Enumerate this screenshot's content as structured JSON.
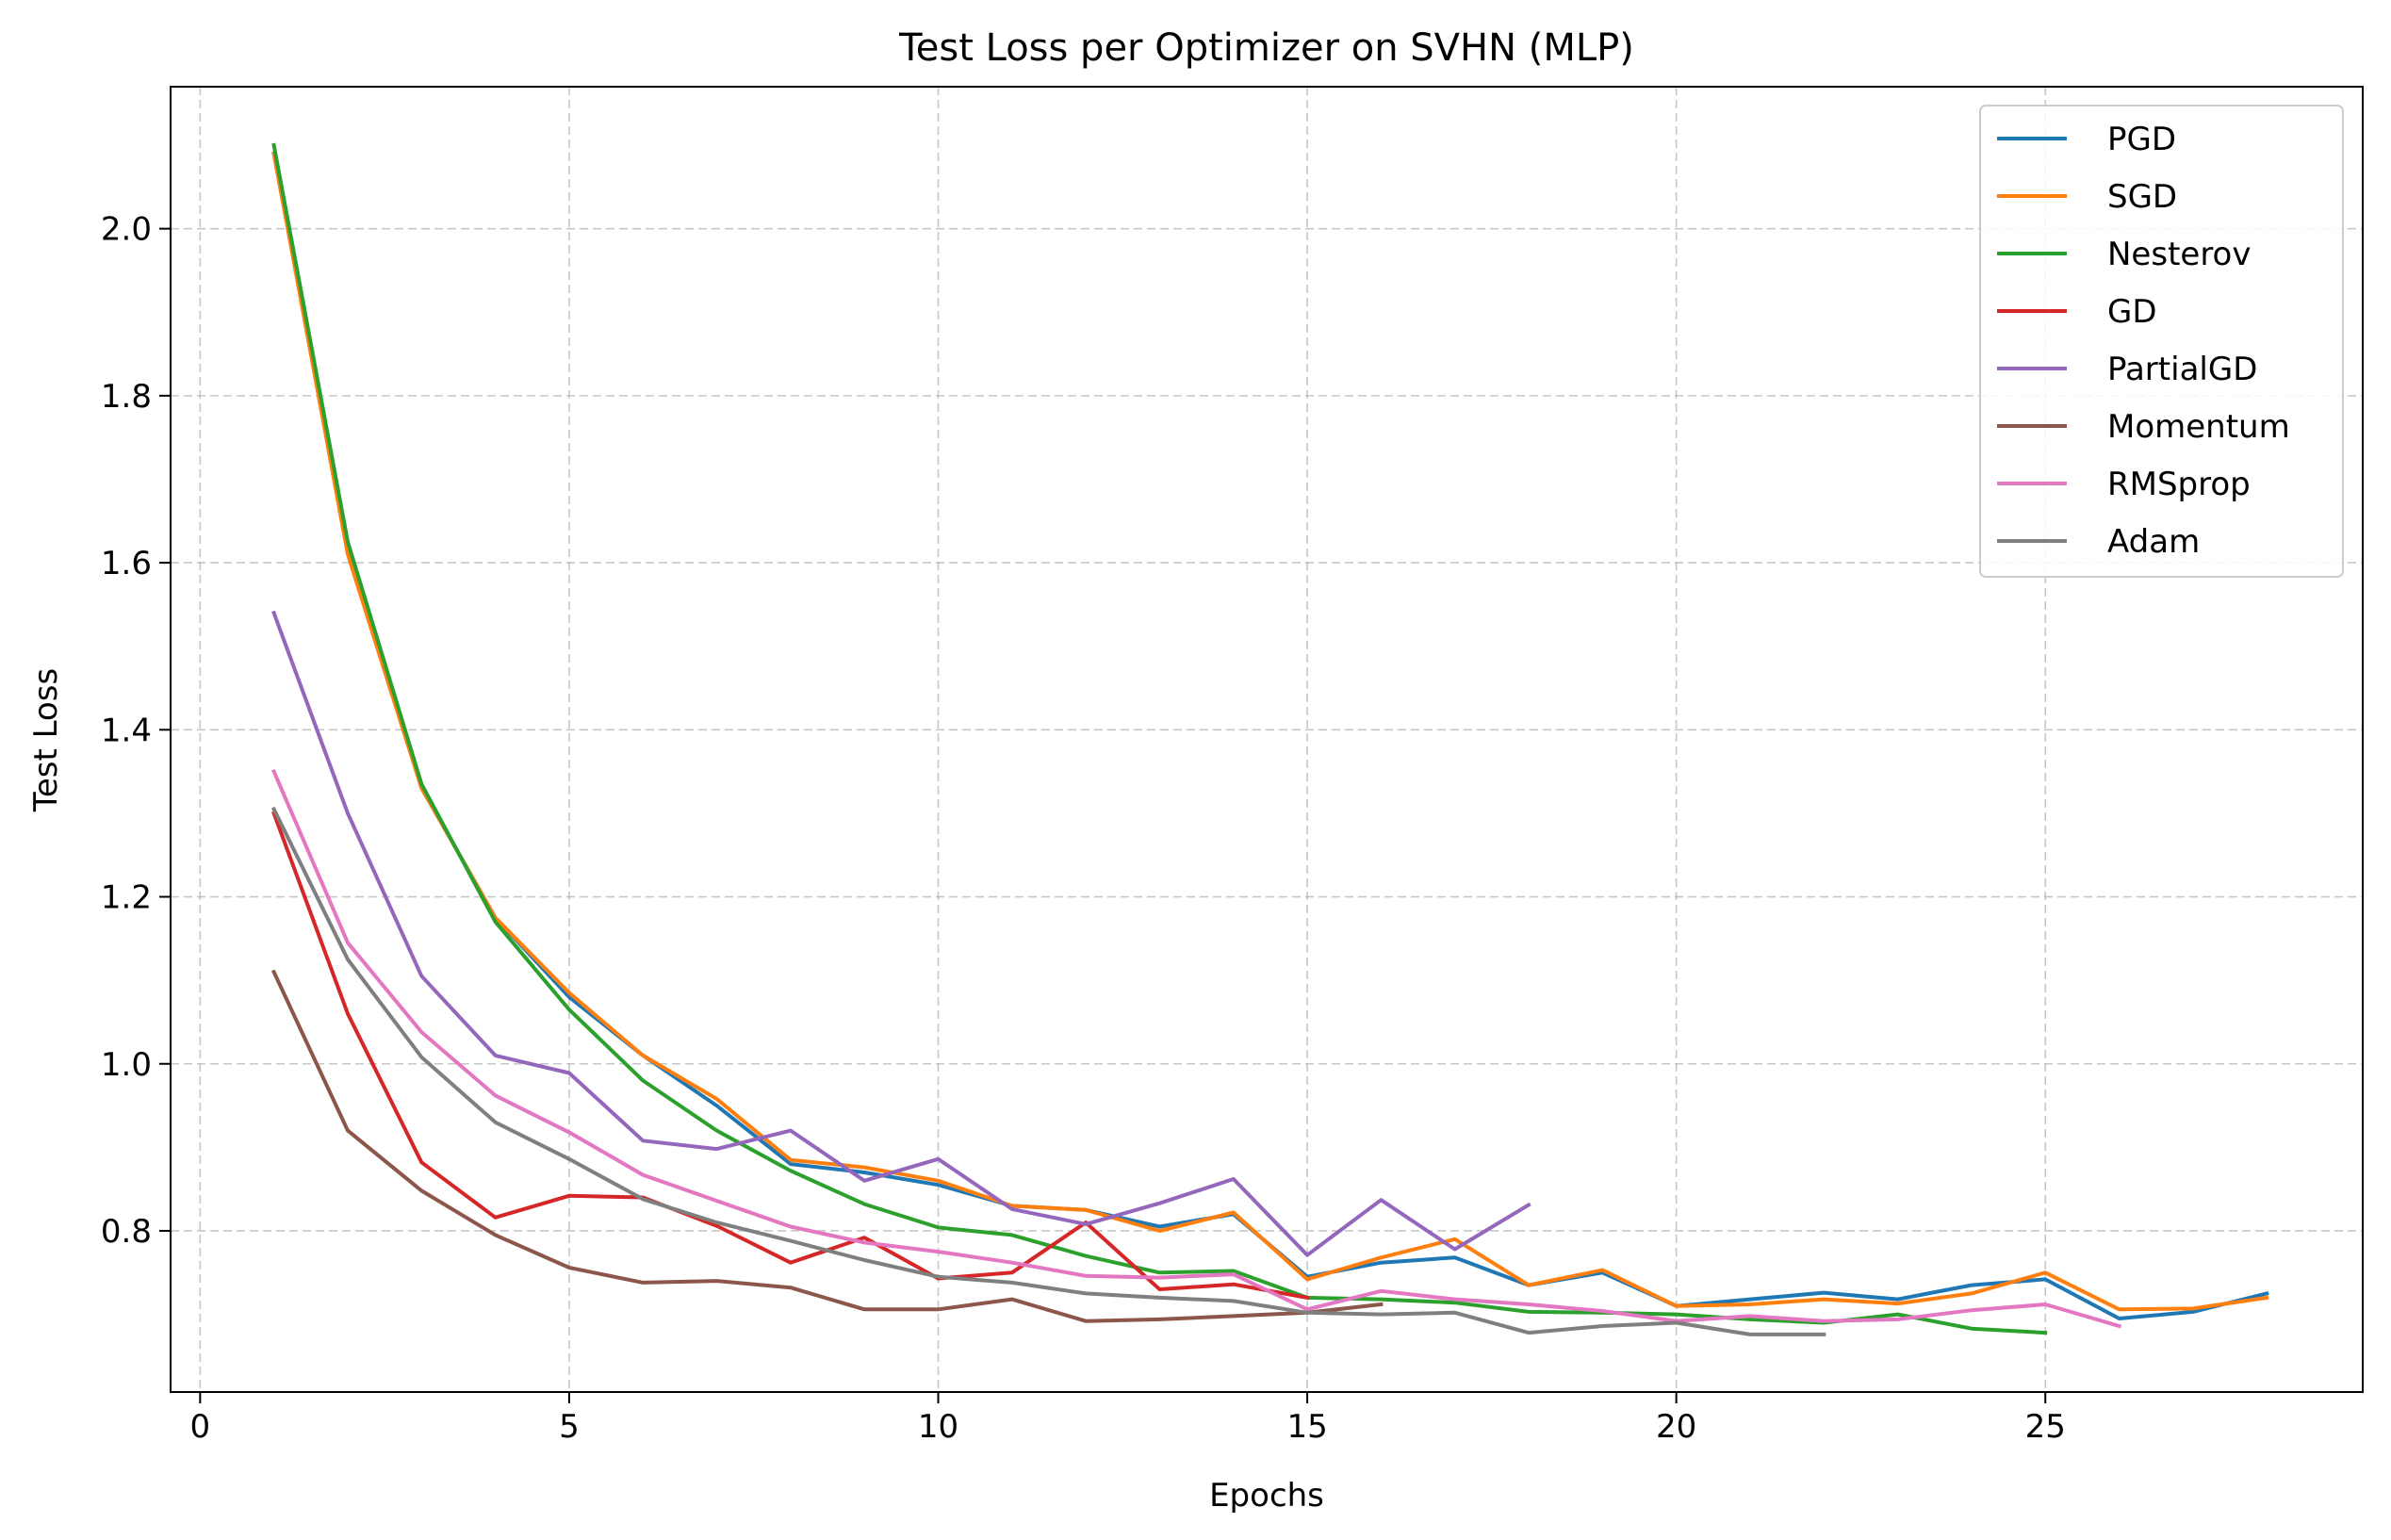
{
  "chart_data": {
    "type": "line",
    "title": "Test Loss per Optimizer on SVHN (MLP)",
    "xlabel": "Epochs",
    "ylabel": "Test Loss",
    "xlim": [
      -0.4,
      29.3
    ],
    "ylim": [
      0.607,
      2.17
    ],
    "xticks": [
      0,
      5,
      10,
      15,
      20,
      25
    ],
    "yticks": [
      0.8,
      1.0,
      1.2,
      1.4,
      1.6,
      1.8,
      2.0
    ],
    "xtick_labels": [
      "0",
      "5",
      "10",
      "15",
      "20",
      "25"
    ],
    "ytick_labels": [
      "0.8",
      "1.0",
      "1.2",
      "1.4",
      "1.6",
      "1.8",
      "2.0"
    ],
    "grid": true,
    "legend_position": "top-right",
    "series": [
      {
        "name": "PGD",
        "color": "#1f77b4",
        "x": [
          1,
          2,
          3,
          4,
          5,
          6,
          7,
          8,
          9,
          10,
          11,
          12,
          13,
          14,
          15,
          16,
          17,
          18,
          19,
          20,
          21,
          22,
          23,
          24,
          25,
          26,
          27,
          28
        ],
        "values": [
          2.09,
          1.62,
          1.33,
          1.175,
          1.08,
          1.01,
          0.95,
          0.88,
          0.87,
          0.855,
          0.83,
          0.825,
          0.805,
          0.82,
          0.745,
          0.762,
          0.768,
          0.735,
          0.75,
          0.71,
          0.718,
          0.726,
          0.718,
          0.735,
          0.742,
          0.695,
          0.703,
          0.725
        ]
      },
      {
        "name": "SGD",
        "color": "#ff7f0e",
        "x": [
          1,
          2,
          3,
          4,
          5,
          6,
          7,
          8,
          9,
          10,
          11,
          12,
          13,
          14,
          15,
          16,
          17,
          18,
          19,
          20,
          21,
          22,
          23,
          24,
          25,
          26,
          27,
          28
        ],
        "values": [
          2.09,
          1.61,
          1.33,
          1.175,
          1.085,
          1.01,
          0.958,
          0.885,
          0.876,
          0.86,
          0.83,
          0.825,
          0.8,
          0.822,
          0.742,
          0.768,
          0.79,
          0.735,
          0.753,
          0.71,
          0.712,
          0.718,
          0.713,
          0.725,
          0.75,
          0.706,
          0.707,
          0.72
        ]
      },
      {
        "name": "Nesterov",
        "color": "#2ca02c",
        "x": [
          1,
          2,
          3,
          4,
          5,
          6,
          7,
          8,
          9,
          10,
          11,
          12,
          13,
          14,
          15,
          16,
          17,
          18,
          19,
          20,
          21,
          22,
          23,
          24,
          25
        ],
        "values": [
          2.1,
          1.625,
          1.335,
          1.17,
          1.065,
          0.98,
          0.92,
          0.872,
          0.832,
          0.804,
          0.795,
          0.77,
          0.75,
          0.752,
          0.72,
          0.718,
          0.714,
          0.703,
          0.702,
          0.7,
          0.694,
          0.69,
          0.7,
          0.683,
          0.678
        ]
      },
      {
        "name": "GD",
        "color": "#d62728",
        "x": [
          1,
          2,
          3,
          4,
          5,
          6,
          7,
          8,
          9,
          10,
          11,
          12,
          13,
          14,
          15
        ],
        "values": [
          1.3,
          1.06,
          0.882,
          0.816,
          0.842,
          0.84,
          0.806,
          0.762,
          0.792,
          0.743,
          0.75,
          0.81,
          0.73,
          0.736,
          0.72
        ]
      },
      {
        "name": "PartialGD",
        "color": "#9467bd",
        "x": [
          1,
          2,
          3,
          4,
          5,
          6,
          7,
          8,
          9,
          10,
          11,
          12,
          13,
          14,
          15,
          16,
          17,
          18
        ],
        "values": [
          1.54,
          1.3,
          1.105,
          1.01,
          0.989,
          0.908,
          0.898,
          0.92,
          0.86,
          0.886,
          0.826,
          0.808,
          0.833,
          0.862,
          0.771,
          0.837,
          0.778,
          0.831
        ]
      },
      {
        "name": "Momentum",
        "color": "#8c564b",
        "x": [
          1,
          2,
          3,
          4,
          5,
          6,
          7,
          8,
          9,
          10,
          11,
          12,
          13,
          14,
          15,
          16
        ],
        "values": [
          1.11,
          0.92,
          0.848,
          0.795,
          0.756,
          0.738,
          0.74,
          0.732,
          0.706,
          0.706,
          0.718,
          0.692,
          0.694,
          0.698,
          0.702,
          0.712
        ]
      },
      {
        "name": "RMSprop",
        "color": "#e377c2",
        "x": [
          1,
          2,
          3,
          4,
          5,
          6,
          7,
          8,
          9,
          10,
          11,
          12,
          13,
          14,
          15,
          16,
          17,
          18,
          19,
          20,
          21,
          22,
          23,
          24,
          25,
          26
        ],
        "values": [
          1.35,
          1.145,
          1.038,
          0.962,
          0.918,
          0.867,
          0.836,
          0.805,
          0.786,
          0.775,
          0.762,
          0.746,
          0.744,
          0.748,
          0.706,
          0.728,
          0.718,
          0.712,
          0.704,
          0.692,
          0.698,
          0.692,
          0.694,
          0.705,
          0.712,
          0.686
        ]
      },
      {
        "name": "Adam",
        "color": "#7f7f7f",
        "x": [
          1,
          2,
          3,
          4,
          5,
          6,
          7,
          8,
          9,
          10,
          11,
          12,
          13,
          14,
          15,
          16,
          17,
          18,
          19,
          20,
          21,
          22
        ],
        "values": [
          1.305,
          1.125,
          1.008,
          0.93,
          0.886,
          0.838,
          0.81,
          0.788,
          0.765,
          0.745,
          0.738,
          0.725,
          0.72,
          0.716,
          0.702,
          0.7,
          0.702,
          0.678,
          0.686,
          0.69,
          0.676,
          0.676
        ]
      }
    ]
  }
}
